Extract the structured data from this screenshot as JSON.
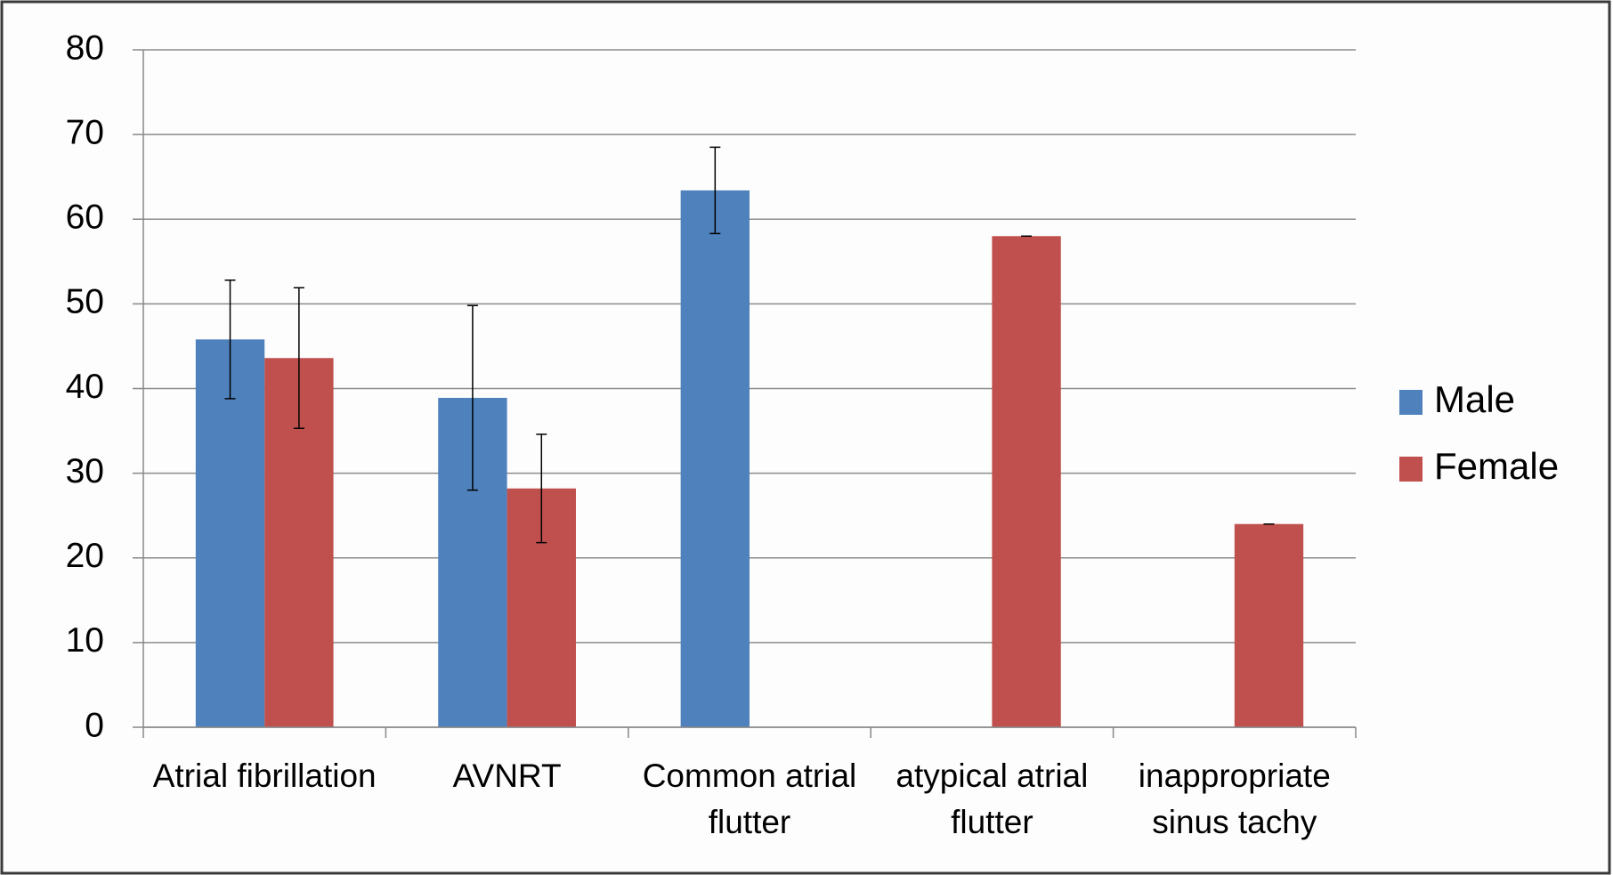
{
  "chart_data": {
    "type": "bar",
    "categories": [
      "Atrial fibrillation",
      "AVNRT",
      "Common atrial flutter",
      "atypical atrial flutter",
      "inappropriate sinus tachy"
    ],
    "series": [
      {
        "name": "Male",
        "color": "#4f81bd",
        "values": [
          45.8,
          38.9,
          63.4,
          null,
          null
        ],
        "errors": [
          7,
          10.9,
          5.1,
          null,
          null
        ]
      },
      {
        "name": "Female",
        "color": "#c0504d",
        "values": [
          43.6,
          28.2,
          null,
          58,
          24
        ],
        "errors": [
          8.3,
          6.4,
          null,
          0,
          0
        ]
      }
    ],
    "ylim": [
      0,
      80
    ],
    "yticks": [
      0,
      10,
      20,
      30,
      40,
      50,
      60,
      70,
      80
    ],
    "grid": true,
    "legend": "right"
  }
}
